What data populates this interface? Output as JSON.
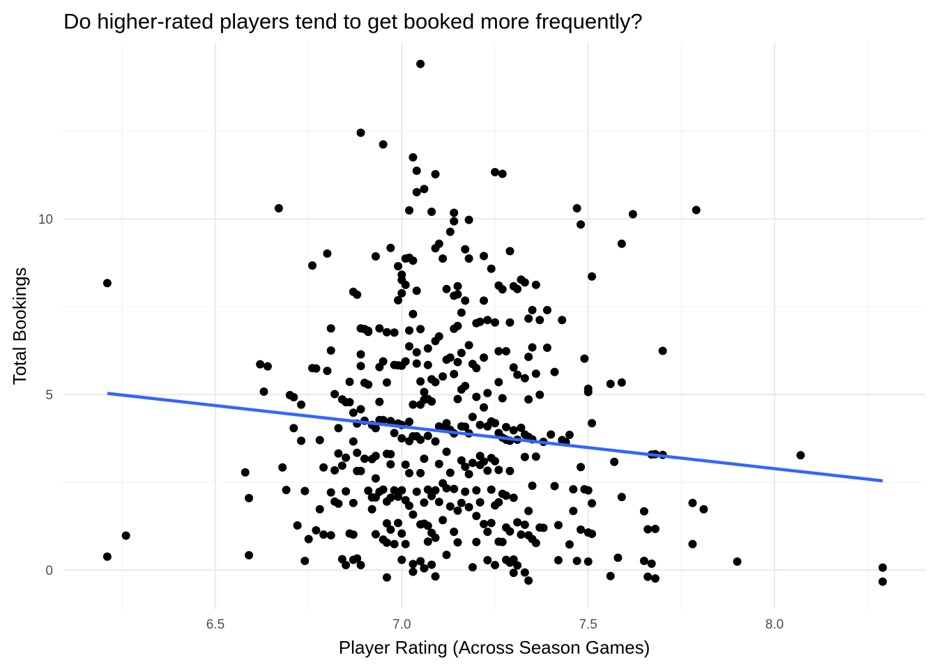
{
  "chart_data": {
    "type": "scatter",
    "title": "Do higher-rated players tend to get booked more frequently?",
    "xlabel": "Player Rating (Across Season Games)",
    "ylabel": "Total Bookings",
    "xlim": [
      6.1,
      8.3
    ],
    "ylim": [
      -1,
      14.5
    ],
    "x_ticks": [
      6.5,
      7.0,
      7.5,
      8.0
    ],
    "x_tick_labels": [
      "6.5",
      "7.0",
      "7.5",
      "8.0"
    ],
    "y_ticks": [
      0,
      5,
      10
    ],
    "y_tick_labels": [
      "0",
      "5",
      "10"
    ],
    "grid": true,
    "legend": "none",
    "point_color": "#000000",
    "trend_color": "#3366ff",
    "trend_line": {
      "x": [
        6.21,
        8.29
      ],
      "y": [
        5.03,
        2.54
      ]
    },
    "points": [
      [
        6.21,
        8.17
      ],
      [
        6.21,
        0.38
      ],
      [
        6.26,
        0.98
      ],
      [
        6.58,
        2.78
      ],
      [
        6.59,
        2.05
      ],
      [
        6.59,
        0.42
      ],
      [
        6.62,
        5.86
      ],
      [
        6.63,
        5.08
      ],
      [
        6.64,
        5.8
      ],
      [
        6.67,
        10.3
      ],
      [
        6.68,
        2.92
      ],
      [
        6.69,
        2.28
      ],
      [
        6.7,
        4.98
      ],
      [
        6.71,
        4.92
      ],
      [
        6.71,
        4.04
      ],
      [
        6.72,
        1.27
      ],
      [
        6.73,
        4.71
      ],
      [
        6.73,
        3.68
      ],
      [
        6.74,
        2.25
      ],
      [
        6.74,
        0.26
      ],
      [
        6.75,
        0.88
      ],
      [
        6.76,
        8.67
      ],
      [
        6.76,
        5.75
      ],
      [
        6.77,
        5.74
      ],
      [
        6.77,
        1.13
      ],
      [
        6.78,
        3.7
      ],
      [
        6.78,
        1.73
      ],
      [
        6.79,
        2.92
      ],
      [
        6.79,
        1.01
      ],
      [
        6.8,
        9.01
      ],
      [
        6.8,
        5.67
      ],
      [
        6.81,
        6.88
      ],
      [
        6.81,
        6.25
      ],
      [
        6.81,
        2.21
      ],
      [
        6.81,
        0.99
      ],
      [
        6.82,
        5.01
      ],
      [
        6.82,
        2.84
      ],
      [
        6.82,
        1.95
      ],
      [
        6.83,
        4.04
      ],
      [
        6.83,
        3.32
      ],
      [
        6.83,
        1.89
      ],
      [
        6.84,
        4.86
      ],
      [
        6.84,
        2.97
      ],
      [
        6.84,
        0.31
      ],
      [
        6.85,
        4.78
      ],
      [
        6.85,
        3.2
      ],
      [
        6.85,
        2.24
      ],
      [
        6.85,
        0.14
      ],
      [
        6.86,
        5.36
      ],
      [
        6.86,
        4.78
      ],
      [
        6.86,
        1.04
      ],
      [
        6.87,
        7.92
      ],
      [
        6.87,
        4.48
      ],
      [
        6.87,
        3.66
      ],
      [
        6.87,
        1.91
      ],
      [
        6.87,
        1.01
      ],
      [
        6.87,
        0.29
      ],
      [
        6.88,
        7.84
      ],
      [
        6.88,
        4.17
      ],
      [
        6.88,
        3.34
      ],
      [
        6.88,
        2.82
      ],
      [
        6.88,
        0.33
      ],
      [
        6.89,
        12.45
      ],
      [
        6.89,
        6.88
      ],
      [
        6.89,
        6.14
      ],
      [
        6.89,
        5.81
      ],
      [
        6.89,
        4.58
      ],
      [
        6.89,
        2.82
      ],
      [
        6.89,
        0.14
      ],
      [
        6.9,
        6.86
      ],
      [
        6.9,
        5.33
      ],
      [
        6.9,
        4.25
      ],
      [
        6.9,
        3.17
      ],
      [
        6.91,
        6.81
      ],
      [
        6.91,
        6.78
      ],
      [
        6.91,
        5.28
      ],
      [
        6.91,
        2.26
      ],
      [
        6.92,
        4.13
      ],
      [
        6.92,
        3.16
      ],
      [
        6.92,
        2.07
      ],
      [
        6.92,
        1.73
      ],
      [
        6.93,
        8.93
      ],
      [
        6.93,
        4.04
      ],
      [
        6.93,
        3.25
      ],
      [
        6.93,
        2.61
      ],
      [
        6.93,
        2.07
      ],
      [
        6.93,
        1.02
      ],
      [
        6.94,
        6.88
      ],
      [
        6.94,
        5.78
      ],
      [
        6.94,
        4.79
      ],
      [
        6.94,
        4.27
      ],
      [
        6.94,
        2.23
      ],
      [
        6.95,
        12.12
      ],
      [
        6.95,
        5.94
      ],
      [
        6.95,
        4.27
      ],
      [
        6.95,
        2.29
      ],
      [
        6.95,
        0.87
      ],
      [
        6.96,
        6.77
      ],
      [
        6.96,
        5.34
      ],
      [
        6.96,
        3.31
      ],
      [
        6.96,
        1.95
      ],
      [
        6.96,
        1.33
      ],
      [
        6.96,
        0.78
      ],
      [
        6.96,
        -0.21
      ],
      [
        6.97,
        9.17
      ],
      [
        6.97,
        4.24
      ],
      [
        6.97,
        3.3
      ],
      [
        6.97,
        3.01
      ],
      [
        6.97,
        2.06
      ],
      [
        6.97,
        1.15
      ],
      [
        6.98,
        6.76
      ],
      [
        6.98,
        5.84
      ],
      [
        6.98,
        3.9
      ],
      [
        6.98,
        2.27
      ],
      [
        6.98,
        0.74
      ],
      [
        6.99,
        8.65
      ],
      [
        6.99,
        7.68
      ],
      [
        6.99,
        5.83
      ],
      [
        6.99,
        4.17
      ],
      [
        6.99,
        2.09
      ],
      [
        6.99,
        1.34
      ],
      [
        7.0,
        8.41
      ],
      [
        7.0,
        8.26
      ],
      [
        7.0,
        7.88
      ],
      [
        7.0,
        5.82
      ],
      [
        7.0,
        4.13
      ],
      [
        7.0,
        3.75
      ],
      [
        7.0,
        2.27
      ],
      [
        7.0,
        1.04
      ],
      [
        7.0,
        0.29
      ],
      [
        7.01,
        8.87
      ],
      [
        7.01,
        8.12
      ],
      [
        7.01,
        5.94
      ],
      [
        7.01,
        3.0
      ],
      [
        7.01,
        1.99
      ],
      [
        7.01,
        0.74
      ],
      [
        7.02,
        10.24
      ],
      [
        7.02,
        8.89
      ],
      [
        7.02,
        6.82
      ],
      [
        7.02,
        6.37
      ],
      [
        7.02,
        4.22
      ],
      [
        7.02,
        3.67
      ],
      [
        7.02,
        2.76
      ],
      [
        7.02,
        1.83
      ],
      [
        7.03,
        11.75
      ],
      [
        7.03,
        8.81
      ],
      [
        7.03,
        7.29
      ],
      [
        7.03,
        4.71
      ],
      [
        7.03,
        3.81
      ],
      [
        7.03,
        1.58
      ],
      [
        7.03,
        0.17
      ],
      [
        7.03,
        -0.05
      ],
      [
        7.04,
        10.76
      ],
      [
        7.04,
        11.37
      ],
      [
        7.04,
        7.95
      ],
      [
        7.04,
        6.2
      ],
      [
        7.04,
        5.88
      ],
      [
        7.04,
        3.81
      ],
      [
        7.04,
        2.23
      ],
      [
        7.05,
        14.41
      ],
      [
        7.05,
        6.86
      ],
      [
        7.05,
        5.37
      ],
      [
        7.05,
        4.71
      ],
      [
        7.05,
        3.71
      ],
      [
        7.05,
        2.76
      ],
      [
        7.05,
        1.3
      ],
      [
        7.05,
        0.25
      ],
      [
        7.06,
        10.85
      ],
      [
        7.06,
        5.07
      ],
      [
        7.06,
        4.85
      ],
      [
        7.06,
        3.17
      ],
      [
        7.06,
        1.92
      ],
      [
        7.06,
        1.32
      ],
      [
        7.06,
        0.05
      ],
      [
        7.07,
        6.31
      ],
      [
        7.07,
        5.84
      ],
      [
        7.07,
        4.87
      ],
      [
        7.07,
        3.82
      ],
      [
        7.07,
        2.29
      ],
      [
        7.07,
        1.26
      ],
      [
        7.07,
        0.81
      ],
      [
        7.08,
        10.2
      ],
      [
        7.08,
        5.43
      ],
      [
        7.08,
        4.8
      ],
      [
        7.08,
        2.11
      ],
      [
        7.08,
        1.06
      ],
      [
        7.08,
        0.15
      ],
      [
        7.09,
        11.27
      ],
      [
        7.09,
        9.16
      ],
      [
        7.09,
        6.52
      ],
      [
        7.09,
        5.35
      ],
      [
        7.09,
        3.66
      ],
      [
        7.09,
        2.27
      ],
      [
        7.09,
        0.92
      ],
      [
        7.09,
        -0.18
      ],
      [
        7.1,
        9.29
      ],
      [
        7.1,
        6.65
      ],
      [
        7.1,
        4.09
      ],
      [
        7.1,
        3.02
      ],
      [
        7.1,
        1.94
      ],
      [
        7.11,
        8.87
      ],
      [
        7.11,
        5.51
      ],
      [
        7.11,
        4.03
      ],
      [
        7.11,
        2.47
      ],
      [
        7.11,
        1.42
      ],
      [
        7.12,
        8.0
      ],
      [
        7.12,
        5.99
      ],
      [
        7.12,
        4.18
      ],
      [
        7.12,
        3.37
      ],
      [
        7.12,
        2.33
      ],
      [
        7.12,
        0.43
      ],
      [
        7.13,
        9.63
      ],
      [
        7.13,
        6.05
      ],
      [
        7.13,
        3.99
      ],
      [
        7.13,
        2.77
      ],
      [
        7.13,
        1.81
      ],
      [
        7.14,
        10.17
      ],
      [
        7.14,
        9.93
      ],
      [
        7.14,
        7.81
      ],
      [
        7.14,
        6.87
      ],
      [
        7.14,
        5.58
      ],
      [
        7.14,
        3.89
      ],
      [
        7.14,
        2.31
      ],
      [
        7.14,
        1.09
      ],
      [
        7.15,
        8.08
      ],
      [
        7.15,
        7.85
      ],
      [
        7.15,
        6.95
      ],
      [
        7.15,
        5.92
      ],
      [
        7.15,
        4.87
      ],
      [
        7.15,
        1.69
      ],
      [
        7.15,
        0.79
      ],
      [
        7.16,
        7.33
      ],
      [
        7.16,
        6.18
      ],
      [
        7.16,
        5.14
      ],
      [
        7.16,
        4.09
      ],
      [
        7.16,
        3.12
      ],
      [
        7.16,
        1.91
      ],
      [
        7.17,
        9.13
      ],
      [
        7.17,
        7.67
      ],
      [
        7.17,
        5.24
      ],
      [
        7.17,
        4.08
      ],
      [
        7.17,
        2.94
      ],
      [
        7.17,
        2.23
      ],
      [
        7.18,
        9.97
      ],
      [
        7.18,
        8.87
      ],
      [
        7.18,
        6.4
      ],
      [
        7.18,
        3.89
      ],
      [
        7.18,
        2.73
      ],
      [
        7.18,
        1.79
      ],
      [
        7.19,
        5.87
      ],
      [
        7.19,
        4.36
      ],
      [
        7.19,
        3.05
      ],
      [
        7.19,
        0.08
      ],
      [
        7.2,
        7.03
      ],
      [
        7.2,
        5.75
      ],
      [
        7.2,
        4.93
      ],
      [
        7.2,
        2.27
      ],
      [
        7.2,
        1.54
      ],
      [
        7.2,
        0.8
      ],
      [
        7.21,
        7.07
      ],
      [
        7.21,
        4.13
      ],
      [
        7.21,
        3.25
      ],
      [
        7.21,
        2.99
      ],
      [
        7.21,
        1.93
      ],
      [
        7.22,
        8.94
      ],
      [
        7.22,
        7.67
      ],
      [
        7.22,
        6.05
      ],
      [
        7.22,
        4.63
      ],
      [
        7.22,
        3.09
      ],
      [
        7.22,
        1.31
      ],
      [
        7.23,
        7.12
      ],
      [
        7.23,
        5.04
      ],
      [
        7.23,
        4.09
      ],
      [
        7.23,
        2.83
      ],
      [
        7.23,
        1.09
      ],
      [
        7.23,
        0.28
      ],
      [
        7.24,
        8.58
      ],
      [
        7.24,
        4.23
      ],
      [
        7.24,
        3.19
      ],
      [
        7.24,
        2.29
      ],
      [
        7.24,
        1.34
      ],
      [
        7.25,
        11.33
      ],
      [
        7.25,
        7.05
      ],
      [
        7.25,
        4.18
      ],
      [
        7.25,
        3.1
      ],
      [
        7.25,
        1.84
      ],
      [
        7.25,
        0.14
      ],
      [
        7.26,
        8.1
      ],
      [
        7.26,
        6.23
      ],
      [
        7.26,
        5.35
      ],
      [
        7.26,
        3.9
      ],
      [
        7.26,
        2.85
      ],
      [
        7.26,
        1.93
      ],
      [
        7.26,
        0.81
      ],
      [
        7.27,
        11.28
      ],
      [
        7.27,
        7.99
      ],
      [
        7.27,
        4.89
      ],
      [
        7.27,
        3.77
      ],
      [
        7.27,
        2.17
      ],
      [
        7.27,
        0.8
      ],
      [
        7.28,
        6.23
      ],
      [
        7.28,
        4.07
      ],
      [
        7.28,
        3.71
      ],
      [
        7.28,
        2.12
      ],
      [
        7.28,
        1.21
      ],
      [
        7.28,
        0.29
      ],
      [
        7.29,
        9.08
      ],
      [
        7.29,
        7.05
      ],
      [
        7.29,
        3.68
      ],
      [
        7.29,
        2.82
      ],
      [
        7.29,
        1.1
      ],
      [
        7.29,
        0.21
      ],
      [
        7.3,
        8.08
      ],
      [
        7.3,
        5.77
      ],
      [
        7.3,
        3.98
      ],
      [
        7.3,
        2.06
      ],
      [
        7.3,
        0.3
      ],
      [
        7.3,
        -0.08
      ],
      [
        7.31,
        8.0
      ],
      [
        7.31,
        5.56
      ],
      [
        7.31,
        3.71
      ],
      [
        7.31,
        1.36
      ],
      [
        7.31,
        0.13
      ],
      [
        7.32,
        8.27
      ],
      [
        7.32,
        4.05
      ],
      [
        7.32,
        1.01
      ],
      [
        7.33,
        8.19
      ],
      [
        7.33,
        5.46
      ],
      [
        7.33,
        3.86
      ],
      [
        7.33,
        3.22
      ],
      [
        7.33,
        1.29
      ],
      [
        7.33,
        -0.07
      ],
      [
        7.34,
        7.16
      ],
      [
        7.34,
        6.07
      ],
      [
        7.34,
        4.86
      ],
      [
        7.34,
        3.79
      ],
      [
        7.34,
        1.68
      ],
      [
        7.34,
        0.99
      ],
      [
        7.34,
        -0.3
      ],
      [
        7.35,
        7.4
      ],
      [
        7.35,
        6.34
      ],
      [
        7.35,
        3.72
      ],
      [
        7.35,
        2.4
      ],
      [
        7.35,
        0.88
      ],
      [
        7.36,
        8.12
      ],
      [
        7.36,
        5.59
      ],
      [
        7.36,
        3.23
      ],
      [
        7.36,
        0.77
      ],
      [
        7.37,
        7.12
      ],
      [
        7.37,
        4.99
      ],
      [
        7.37,
        1.21
      ],
      [
        7.38,
        3.65
      ],
      [
        7.38,
        1.2
      ],
      [
        7.39,
        7.4
      ],
      [
        7.39,
        6.33
      ],
      [
        7.4,
        3.86
      ],
      [
        7.41,
        5.64
      ],
      [
        7.41,
        2.39
      ],
      [
        7.42,
        1.28
      ],
      [
        7.42,
        0.28
      ],
      [
        7.43,
        7.12
      ],
      [
        7.43,
        3.7
      ],
      [
        7.44,
        3.64
      ],
      [
        7.45,
        3.85
      ],
      [
        7.45,
        0.73
      ],
      [
        7.46,
        2.3
      ],
      [
        7.46,
        1.68
      ],
      [
        7.47,
        10.3
      ],
      [
        7.47,
        0.26
      ],
      [
        7.48,
        9.84
      ],
      [
        7.48,
        2.93
      ],
      [
        7.48,
        1.15
      ],
      [
        7.49,
        6.02
      ],
      [
        7.49,
        2.3
      ],
      [
        7.5,
        5.16
      ],
      [
        7.5,
        5.07
      ],
      [
        7.5,
        2.27
      ],
      [
        7.5,
        1.07
      ],
      [
        7.5,
        0.24
      ],
      [
        7.51,
        8.36
      ],
      [
        7.51,
        4.18
      ],
      [
        7.51,
        1.9
      ],
      [
        7.51,
        1.03
      ],
      [
        7.56,
        5.3
      ],
      [
        7.56,
        -0.17
      ],
      [
        7.57,
        3.08
      ],
      [
        7.58,
        0.35
      ],
      [
        7.59,
        9.29
      ],
      [
        7.59,
        5.34
      ],
      [
        7.59,
        2.08
      ],
      [
        7.62,
        10.13
      ],
      [
        7.65,
        1.67
      ],
      [
        7.65,
        0.26
      ],
      [
        7.66,
        1.16
      ],
      [
        7.66,
        -0.19
      ],
      [
        7.67,
        3.29
      ],
      [
        7.67,
        0.18
      ],
      [
        7.68,
        3.3
      ],
      [
        7.68,
        1.17
      ],
      [
        7.68,
        -0.24
      ],
      [
        7.7,
        6.24
      ],
      [
        7.7,
        3.28
      ],
      [
        7.78,
        1.91
      ],
      [
        7.78,
        0.74
      ],
      [
        7.79,
        10.25
      ],
      [
        7.81,
        1.73
      ],
      [
        7.9,
        0.24
      ],
      [
        8.07,
        3.27
      ],
      [
        8.29,
        0.07
      ],
      [
        8.29,
        -0.33
      ]
    ]
  }
}
